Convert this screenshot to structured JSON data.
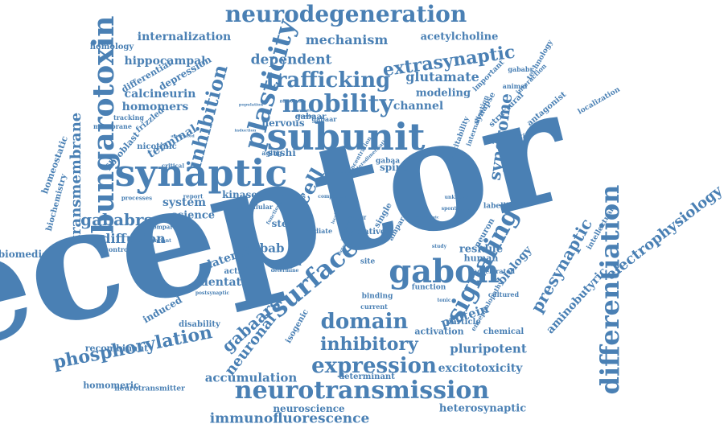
{
  "colors": {
    "ink": "#4a80b4",
    "background": "#ffffff"
  },
  "words": [
    {
      "text": "receptor",
      "weight": 1.0,
      "rotation": -14
    },
    {
      "text": "subunit",
      "weight": 0.42
    },
    {
      "text": "synaptic",
      "weight": 0.4
    },
    {
      "text": "bungarotoxin",
      "weight": 0.34,
      "rotation": -90
    },
    {
      "text": "neurotransmission",
      "weight": 0.3
    },
    {
      "text": "differentiation",
      "weight": 0.32,
      "rotation": -90
    },
    {
      "text": "plasticity",
      "weight": 0.3,
      "rotation": -75
    },
    {
      "text": "gabon",
      "weight": 0.31
    },
    {
      "text": "surface",
      "weight": 0.29,
      "rotation": -40
    },
    {
      "text": "signaling",
      "weight": 0.28,
      "rotation": -62
    },
    {
      "text": "neurodegeneration",
      "weight": 0.25
    },
    {
      "text": "mobility",
      "weight": 0.25
    },
    {
      "text": "trafficking",
      "weight": 0.23
    },
    {
      "text": "expression",
      "weight": 0.22
    },
    {
      "text": "phosphorylation",
      "weight": 0.2,
      "rotation": -11
    },
    {
      "text": "domain",
      "weight": 0.22
    },
    {
      "text": "inhibitory",
      "weight": 0.21
    },
    {
      "text": "inhibition",
      "weight": 0.2,
      "rotation": -75
    },
    {
      "text": "extrasynaptic",
      "weight": 0.2,
      "rotation": -8
    },
    {
      "text": "cell",
      "weight": 0.22,
      "rotation": -60
    },
    {
      "text": "gababrs",
      "weight": 0.17
    },
    {
      "text": "presynaptic",
      "weight": 0.17,
      "rotation": -60
    },
    {
      "text": "syndrome",
      "weight": 0.17,
      "rotation": -82
    },
    {
      "text": "gabaars",
      "weight": 0.17,
      "rotation": -42
    },
    {
      "text": "neuronal",
      "weight": 0.16,
      "rotation": -52
    },
    {
      "text": "electrophysiology",
      "weight": 0.15,
      "rotation": -38
    },
    {
      "text": "transmembrane",
      "weight": 0.14,
      "rotation": -90
    },
    {
      "text": "immunofluorescence",
      "weight": 0.14
    },
    {
      "text": "dependent",
      "weight": 0.14
    },
    {
      "text": "mechanism",
      "weight": 0.13
    },
    {
      "text": "glutamate",
      "weight": 0.13
    },
    {
      "text": "diffusion",
      "weight": 0.12
    },
    {
      "text": "accumulation",
      "weight": 0.12
    },
    {
      "text": "pluripotent",
      "weight": 0.12
    },
    {
      "text": "excitotoxicity",
      "weight": 0.11
    },
    {
      "text": "protein",
      "weight": 0.13,
      "rotation": -18
    },
    {
      "text": "biology",
      "weight": 0.11,
      "rotation": -50
    },
    {
      "text": "aminobutyric",
      "weight": 0.11,
      "rotation": -48
    },
    {
      "text": "heterosynaptic",
      "weight": 0.1
    },
    {
      "text": "gabab",
      "weight": 0.12
    },
    {
      "text": "system",
      "weight": 0.11
    },
    {
      "text": "science",
      "weight": 0.1
    },
    {
      "text": "channel",
      "weight": 0.11
    },
    {
      "text": "modeling",
      "weight": 0.1
    },
    {
      "text": "acetylcholine",
      "weight": 0.1
    },
    {
      "text": "internalization",
      "weight": 0.1
    },
    {
      "text": "hippocampal",
      "weight": 0.1
    },
    {
      "text": "calcineurin",
      "weight": 0.1
    },
    {
      "text": "homomers",
      "weight": 0.1
    },
    {
      "text": "terminal",
      "weight": 0.1,
      "rotation": -30
    },
    {
      "text": "lateral",
      "weight": 0.1,
      "rotation": -20
    },
    {
      "text": "dentate",
      "weight": 0.09
    },
    {
      "text": "neuroscience",
      "weight": 0.08
    },
    {
      "text": "recombinant",
      "weight": 0.08
    },
    {
      "text": "homomeric",
      "weight": 0.08
    },
    {
      "text": "biomedicine",
      "weight": 0.08
    },
    {
      "text": "induced",
      "weight": 0.08,
      "rotation": -30
    },
    {
      "text": "residue",
      "weight": 0.09
    },
    {
      "text": "kinase",
      "weight": 0.08
    },
    {
      "text": "stem",
      "weight": 0.08
    },
    {
      "text": "spine",
      "weight": 0.08
    },
    {
      "text": "nervous",
      "weight": 0.08
    },
    {
      "text": "sushi",
      "weight": 0.08
    },
    {
      "text": "gabaar",
      "weight": 0.07
    },
    {
      "text": "central",
      "weight": 0.07
    },
    {
      "text": "human",
      "weight": 0.08
    },
    {
      "text": "activation",
      "weight": 0.07
    },
    {
      "text": "particle",
      "weight": 0.07
    },
    {
      "text": "chemical",
      "weight": 0.07
    },
    {
      "text": "isogenic",
      "weight": 0.07,
      "rotation": -60
    },
    {
      "text": "activity",
      "weight": 0.07
    },
    {
      "text": "disability",
      "weight": 0.07
    },
    {
      "text": "determinant",
      "weight": 0.06
    },
    {
      "text": "neurotransmitter",
      "weight": 0.06
    },
    {
      "text": "depression",
      "weight": 0.07,
      "rotation": -30
    },
    {
      "text": "differential",
      "weight": 0.07,
      "rotation": -30
    },
    {
      "text": "frizzled",
      "weight": 0.07,
      "rotation": -40
    },
    {
      "text": "fibroblast",
      "weight": 0.07,
      "rotation": -50
    },
    {
      "text": "homeostatic",
      "weight": 0.07,
      "rotation": -70
    },
    {
      "text": "biochemistry",
      "weight": 0.07,
      "rotation": -75
    },
    {
      "text": "homology",
      "weight": 0.06
    },
    {
      "text": "nicotinic",
      "weight": 0.06
    },
    {
      "text": "structural",
      "weight": 0.07,
      "rotation": -45
    },
    {
      "text": "antagonist",
      "weight": 0.06,
      "rotation": -40
    },
    {
      "text": "synapse",
      "weight": 0.07,
      "rotation": -60
    },
    {
      "text": "excitability",
      "weight": 0.06,
      "rotation": -70
    },
    {
      "text": "important",
      "weight": 0.06,
      "rotation": -45
    },
    {
      "text": "technology",
      "weight": 0.06,
      "rotation": -60
    },
    {
      "text": "localization",
      "weight": 0.06,
      "rotation": -30
    },
    {
      "text": "intellectual",
      "weight": 0.06,
      "rotation": -60
    },
    {
      "text": "labelling",
      "weight": 0.05
    },
    {
      "text": "single",
      "weight": 0.07,
      "rotation": -60
    },
    {
      "text": "neuron",
      "weight": 0.07,
      "rotation": -60
    },
    {
      "text": "ampar",
      "weight": 0.06,
      "rotation": -60
    },
    {
      "text": "native",
      "weight": 0.07
    },
    {
      "text": "function",
      "weight": 0.06
    },
    {
      "text": "binding",
      "weight": 0.06
    },
    {
      "text": "current",
      "weight": 0.05
    },
    {
      "text": "site",
      "weight": 0.06
    },
    {
      "text": "shrm",
      "weight": 0.06
    },
    {
      "text": "gabaa",
      "weight": 0.06
    },
    {
      "text": "gabaar",
      "weight": 0.05
    },
    {
      "text": "membrane",
      "weight": 0.05
    },
    {
      "text": "tracking",
      "weight": 0.05
    },
    {
      "text": "controlling",
      "weight": 0.05
    },
    {
      "text": "intracellular",
      "weight": 0.05
    },
    {
      "text": "mediate",
      "weight": 0.05
    },
    {
      "text": "aging",
      "weight": 0.05
    },
    {
      "text": "animal",
      "weight": 0.05
    },
    {
      "text": "gababr",
      "weight": 0.05
    },
    {
      "text": "cultured",
      "weight": 0.05
    },
    {
      "text": "accelerated",
      "weight": 0.04
    },
    {
      "text": "encephalopathy",
      "weight": 0.05,
      "rotation": -60
    },
    {
      "text": "internalisation",
      "weight": 0.05,
      "rotation": -70
    },
    {
      "text": "neurotoxin",
      "weight": 0.05
    },
    {
      "text": "interaction",
      "weight": 0.04,
      "rotation": -45
    },
    {
      "text": "concentration",
      "weight": 0.04,
      "rotation": -60
    },
    {
      "text": "heterodimerisation",
      "weight": 0.04,
      "rotation": -45
    },
    {
      "text": "critical",
      "weight": 0.05
    },
    {
      "text": "processes",
      "weight": 0.04
    },
    {
      "text": "terminus",
      "weight": 0.04
    },
    {
      "text": "compartment",
      "weight": 0.04
    },
    {
      "text": "report",
      "weight": 0.04
    },
    {
      "text": "competitive",
      "weight": 0.04
    },
    {
      "text": "functional",
      "weight": 0.04,
      "rotation": -60
    },
    {
      "text": "motif",
      "weight": 0.04
    },
    {
      "text": "study",
      "weight": 0.04
    },
    {
      "text": "tonic",
      "weight": 0.04
    },
    {
      "text": "determine",
      "weight": 0.04
    },
    {
      "text": "variant",
      "weight": 0.04
    },
    {
      "text": "spontaneous",
      "weight": 0.04
    },
    {
      "text": "unknown",
      "weight": 0.04
    },
    {
      "text": "postsynaptic",
      "weight": 0.04
    },
    {
      "text": "disorder",
      "weight": 0.04
    },
    {
      "text": "mutant",
      "weight": 0.04
    },
    {
      "text": "fluorophore",
      "weight": 0.04
    },
    {
      "text": "population",
      "weight": 0.04
    },
    {
      "text": "induction",
      "weight": 0.04
    },
    {
      "text": "associated",
      "weight": 0.04
    },
    {
      "text": "localization",
      "weight": 0.04,
      "rotation": -70
    },
    {
      "text": "antagonism",
      "weight": 0.04,
      "rotation": -70
    },
    {
      "text": "introduction",
      "weight": 0.04,
      "rotation": -60
    },
    {
      "text": "pathologic",
      "weight": 0.04
    },
    {
      "text": "selective",
      "weight": 0.04
    },
    {
      "text": "ampk",
      "weight": 0.04
    },
    {
      "text": "atrps",
      "weight": 0.04
    },
    {
      "text": "phospho",
      "weight": 0.04
    }
  ]
}
